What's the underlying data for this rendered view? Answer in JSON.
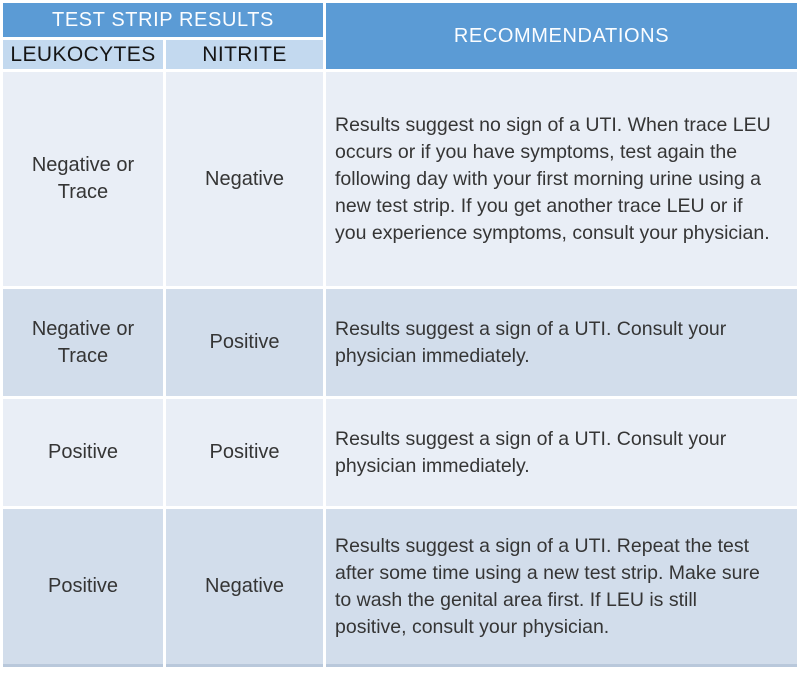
{
  "table": {
    "header": {
      "test_strip_results": "TEST STRIP RESULTS",
      "recommendations": "RECOMMENDATIONS",
      "col_leukocytes": "LEUKOCYTES",
      "col_nitrite": "NITRITE"
    },
    "rows": [
      {
        "leukocytes": "Negative or Trace",
        "nitrite": "Negative",
        "recommendation": "Results suggest no sign of a UTI. When trace LEU occurs or if you have symptoms, test again the following day with your first morning urine using a new test strip. If you get another trace LEU or if you experience symptoms, consult your physician."
      },
      {
        "leukocytes": "Negative or Trace",
        "nitrite": "Positive",
        "recommendation": "Results suggest a sign of a UTI. Consult your physician immediately."
      },
      {
        "leukocytes": "Positive",
        "nitrite": "Positive",
        "recommendation": "Results suggest a sign of a UTI. Consult your physician immediately."
      },
      {
        "leukocytes": "Positive",
        "nitrite": "Negative",
        "recommendation": "Results suggest a sign of a UTI. Repeat the test after some time using a new test strip. Make sure to wash the genital area first. If LEU is still positive, consult your physician."
      }
    ],
    "colors": {
      "header_blue": "#5b9bd5",
      "subheader_blue": "#c3d9ef",
      "row_light": "#e9eef6",
      "row_blue": "#d2ddeb",
      "header_text": "#fbfdff",
      "body_text": "#353535"
    }
  }
}
